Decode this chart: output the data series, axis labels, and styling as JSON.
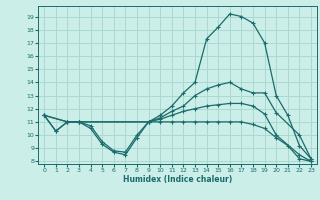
{
  "xlabel": "Humidex (Indice chaleur)",
  "bg_color": "#cceee8",
  "grid_color": "#aad8d0",
  "line_color": "#1a6b6b",
  "xlim": [
    -0.5,
    23.5
  ],
  "ylim": [
    7.8,
    19.8
  ],
  "yticks": [
    8,
    9,
    10,
    11,
    12,
    13,
    14,
    15,
    16,
    17,
    18,
    19
  ],
  "xticks": [
    0,
    1,
    2,
    3,
    4,
    5,
    6,
    7,
    8,
    9,
    10,
    11,
    12,
    13,
    14,
    15,
    16,
    17,
    18,
    19,
    20,
    21,
    22,
    23
  ],
  "curves": [
    {
      "x": [
        0,
        1,
        2,
        3,
        4,
        5,
        6,
        7,
        8,
        9,
        10,
        11,
        12,
        13,
        14,
        15,
        16,
        17,
        18,
        19,
        20,
        21,
        22,
        23
      ],
      "y": [
        11.5,
        10.3,
        11.0,
        11.0,
        10.7,
        9.5,
        8.8,
        8.7,
        10.0,
        11.0,
        11.5,
        12.2,
        13.2,
        14.0,
        17.3,
        18.2,
        19.2,
        19.0,
        18.5,
        17.0,
        13.0,
        11.5,
        9.2,
        8.2
      ]
    },
    {
      "x": [
        0,
        2,
        3,
        9,
        10,
        11,
        12,
        13,
        14,
        15,
        16,
        17,
        18,
        19,
        20,
        22,
        23
      ],
      "y": [
        11.5,
        11.0,
        11.0,
        11.0,
        11.3,
        11.8,
        12.2,
        13.0,
        13.5,
        13.8,
        14.0,
        13.5,
        13.2,
        13.2,
        11.7,
        10.0,
        8.2
      ]
    },
    {
      "x": [
        0,
        2,
        3,
        9,
        10,
        11,
        12,
        13,
        14,
        15,
        16,
        17,
        18,
        19,
        20,
        22,
        23
      ],
      "y": [
        11.5,
        11.0,
        11.0,
        11.0,
        11.2,
        11.5,
        11.8,
        12.0,
        12.2,
        12.3,
        12.4,
        12.4,
        12.2,
        11.6,
        10.0,
        8.5,
        8.0
      ]
    },
    {
      "x": [
        0,
        1,
        2,
        3,
        4,
        5,
        6,
        7,
        8,
        9,
        10,
        11,
        12,
        13,
        14,
        15,
        16,
        17,
        18,
        19,
        20,
        21,
        22,
        23
      ],
      "y": [
        11.5,
        10.3,
        11.0,
        11.0,
        10.5,
        9.3,
        8.7,
        8.5,
        9.8,
        11.0,
        11.0,
        11.0,
        11.0,
        11.0,
        11.0,
        11.0,
        11.0,
        11.0,
        10.8,
        10.5,
        9.8,
        9.2,
        8.2,
        8.0
      ]
    }
  ]
}
